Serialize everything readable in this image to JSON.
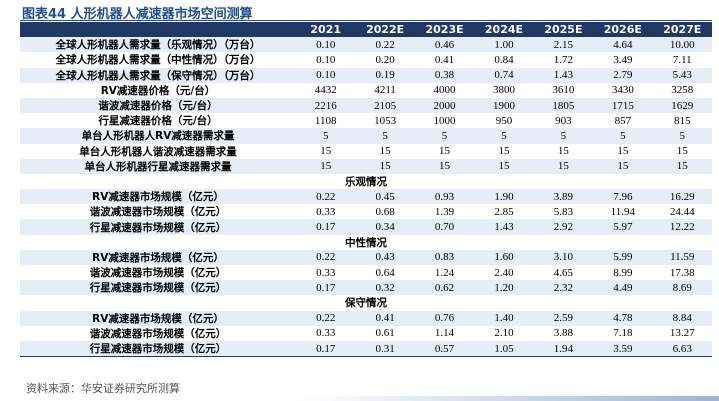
{
  "header": {
    "title": "图表44 人形机器人减速器市场空间测算"
  },
  "table": {
    "columns": [
      "2021",
      "2022E",
      "2023E",
      "2024E",
      "2025E",
      "2026E",
      "2027E"
    ],
    "rows": [
      {
        "label": "全球人形机器人需求量（乐观情况）（万台）",
        "values": [
          "0.10",
          "0.22",
          "0.46",
          "1.00",
          "2.15",
          "4.64",
          "10.00"
        ]
      },
      {
        "label": "全球人形机器人需求量（中性情况）（万台）",
        "values": [
          "0.10",
          "0.20",
          "0.41",
          "0.84",
          "1.72",
          "3.49",
          "7.11"
        ]
      },
      {
        "label": "全球人形机器人需求量（保守情况）（万台）",
        "values": [
          "0.10",
          "0.19",
          "0.38",
          "0.74",
          "1.43",
          "2.79",
          "5.43"
        ]
      },
      {
        "label": "RV减速器价格（元/台）",
        "values": [
          "4432",
          "4211",
          "4000",
          "3800",
          "3610",
          "3430",
          "3258"
        ]
      },
      {
        "label": "谐波减速器价格（元/台）",
        "values": [
          "2216",
          "2105",
          "2000",
          "1900",
          "1805",
          "1715",
          "1629"
        ]
      },
      {
        "label": "行星减速器价格（元/台）",
        "values": [
          "1108",
          "1053",
          "1000",
          "950",
          "903",
          "857",
          "815"
        ]
      },
      {
        "label": "单台人形机器人RV减速器需求量",
        "values": [
          "5",
          "5",
          "5",
          "5",
          "5",
          "5",
          "5"
        ]
      },
      {
        "label": "单台人形机器人谐波减速器需求量",
        "values": [
          "15",
          "15",
          "15",
          "15",
          "15",
          "15",
          "15"
        ]
      },
      {
        "label": "单台人形机器行星减速器需求量",
        "values": [
          "15",
          "15",
          "15",
          "15",
          "15",
          "15",
          "15"
        ]
      },
      {
        "section": "乐观情况"
      },
      {
        "label": "RV减速器市场规模（亿元）",
        "values": [
          "0.22",
          "0.45",
          "0.93",
          "1.90",
          "3.89",
          "7.96",
          "16.29"
        ]
      },
      {
        "label": "谐波减速器市场规模（亿元）",
        "values": [
          "0.33",
          "0.68",
          "1.39",
          "2.85",
          "5.83",
          "11.94",
          "24.44"
        ]
      },
      {
        "label": "行星减速器市场规模（亿元）",
        "values": [
          "0.17",
          "0.34",
          "0.70",
          "1.43",
          "2.92",
          "5.97",
          "12.22"
        ]
      },
      {
        "section": "中性情况"
      },
      {
        "label": "RV减速器市场规模（亿元）",
        "values": [
          "0.22",
          "0.43",
          "0.83",
          "1.60",
          "3.10",
          "5.99",
          "11.59"
        ]
      },
      {
        "label": "谐波减速器市场规模（亿元）",
        "values": [
          "0.33",
          "0.64",
          "1.24",
          "2.40",
          "4.65",
          "8.99",
          "17.38"
        ]
      },
      {
        "label": "行星减速器市场规模（亿元）",
        "values": [
          "0.17",
          "0.32",
          "0.62",
          "1.20",
          "2.32",
          "4.49",
          "8.69"
        ]
      },
      {
        "section": "保守情况"
      },
      {
        "label": "RV减速器市场规模（亿元）",
        "values": [
          "0.22",
          "0.41",
          "0.76",
          "1.40",
          "2.59",
          "4.78",
          "8.84"
        ]
      },
      {
        "label": "谐波减速器市场规模（亿元）",
        "values": [
          "0.33",
          "0.61",
          "1.14",
          "2.10",
          "3.88",
          "7.18",
          "13.27"
        ]
      },
      {
        "label": "行星减速器市场规模（亿元）",
        "values": [
          "0.17",
          "0.31",
          "0.57",
          "1.05",
          "1.94",
          "3.59",
          "6.63"
        ]
      }
    ]
  },
  "footer": {
    "source": "资料来源：华安证券研究所测算"
  }
}
